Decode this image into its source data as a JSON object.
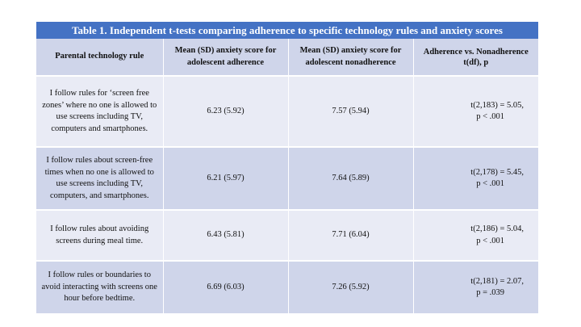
{
  "table": {
    "title": "Table 1. Independent t-tests comparing adherence to specific technology rules and anxiety scores",
    "headers": [
      "Parental technology rule",
      "Mean (SD) anxiety score for adolescent adherence",
      "Mean (SD) anxiety score for adolescent nonadherence",
      "Adherence vs. Nonadherence t(df), p"
    ],
    "rows": [
      {
        "rule": "I follow rules for ‘screen free zones’ where no one is allowed to use screens including TV, computers and smartphones.",
        "adherence": "6.23 (5.92)",
        "nonadherence": "7.57 (5.94)",
        "t": "t(2,183) = 5.05,",
        "p": "p < .001"
      },
      {
        "rule": "I follow rules about screen-free times when no one is allowed to use screens including TV, computers, and smartphones.",
        "adherence": "6.21 (5.97)",
        "nonadherence": "7.64 (5.89)",
        "t": "t(2,178) = 5.45,",
        "p": "p < .001"
      },
      {
        "rule": "I follow rules about avoiding screens during meal time.",
        "adherence": "6.43 (5.81)",
        "nonadherence": "7.71 (6.04)",
        "t": "t(2,186) = 5.04,",
        "p": "p < .001"
      },
      {
        "rule": "I follow rules or boundaries to avoid interacting with screens one hour before bedtime.",
        "adherence": "6.69 (6.03)",
        "nonadherence": "7.26 (5.92)",
        "t": "t(2,181) = 2.07,",
        "p": "p = .039"
      }
    ]
  },
  "colors": {
    "title_bar": "#4472c4",
    "header_row": "#cfd5ea",
    "band_light": "#e9ebf5",
    "band_dark": "#cfd5ea"
  }
}
